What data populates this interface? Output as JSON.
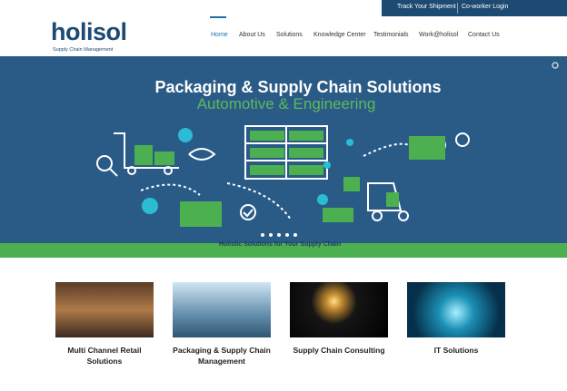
{
  "topbar": {
    "links": [
      "Track Your Shipment",
      "Co-worker Login"
    ]
  },
  "header": {
    "logo": {
      "name": "holisol",
      "tagline": "Supply Chain Management"
    },
    "nav": [
      "Home",
      "About Us",
      "Solutions",
      "Knowledge Center",
      "Testimonials",
      "Work@holisol",
      "Contact Us"
    ],
    "active": "Home"
  },
  "hero": {
    "title": "Packaging & Supply Chain Solutions",
    "subtitle": "Automotive & Engineering"
  },
  "strip": {
    "text": "Holistic Solutions for Your Supply Chain"
  },
  "cards": [
    {
      "title": "Multi Channel Retail Solutions"
    },
    {
      "title": "Packaging & Supply Chain Management"
    },
    {
      "title": "Supply Chain Consulting"
    },
    {
      "title": "IT Solutions"
    }
  ]
}
